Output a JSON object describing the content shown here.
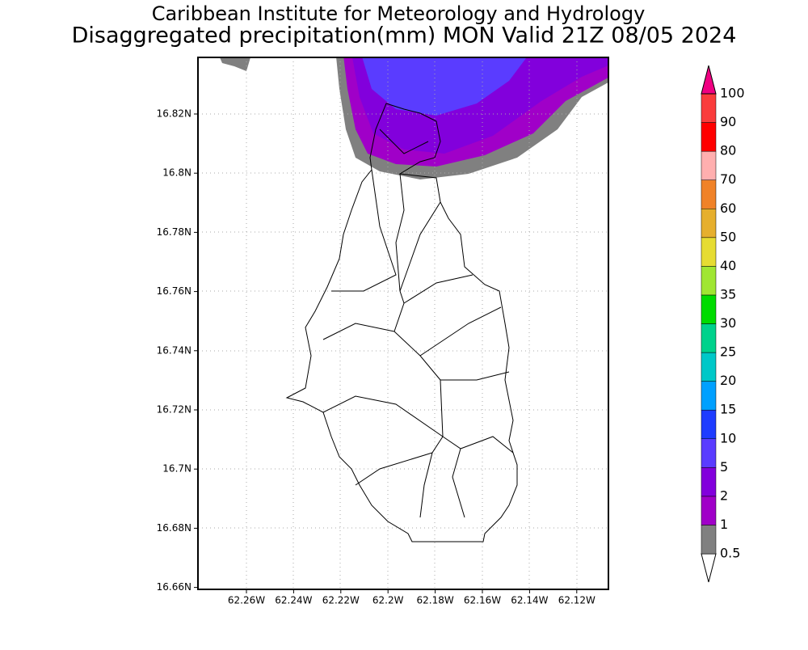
{
  "title": "Caribbean Institute for Meteorology and Hydrology",
  "subtitle": "Disaggregated precipitation(mm) MON Valid 21Z 08/05 2024",
  "map": {
    "lon_labels": [
      "62.26W",
      "62.24W",
      "62.22W",
      "62.2W",
      "62.18W",
      "62.16W",
      "62.14W",
      "62.12W"
    ],
    "lat_labels": [
      "16.82N",
      "16.8N",
      "16.78N",
      "16.76N",
      "16.74N",
      "16.72N",
      "16.7N",
      "16.68N",
      "16.66N"
    ]
  },
  "colorbar": {
    "labels": [
      "0.5",
      "1",
      "2",
      "5",
      "10",
      "15",
      "20",
      "25",
      "30",
      "35",
      "40",
      "50",
      "60",
      "70",
      "80",
      "90",
      "100"
    ],
    "colors": [
      "#ffffff",
      "#808080",
      "#a000c8",
      "#8200dc",
      "#5a3cff",
      "#1e3cff",
      "#00a0ff",
      "#00c8c8",
      "#00d28c",
      "#00dc00",
      "#a0e632",
      "#e6dc32",
      "#e6af2d",
      "#f08228",
      "#ffafaf",
      "#ff0000",
      "#fa3c3c",
      "#f00082"
    ]
  }
}
